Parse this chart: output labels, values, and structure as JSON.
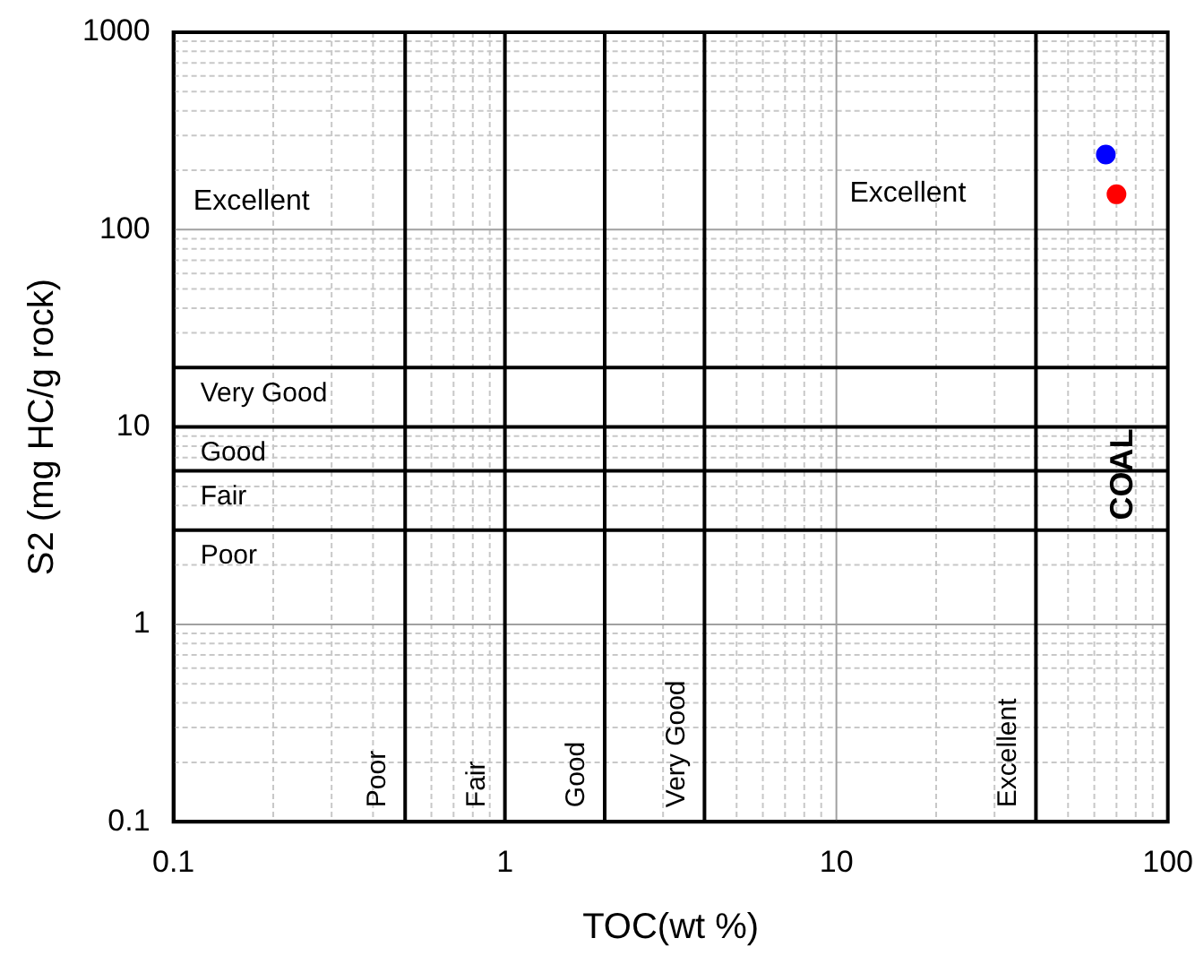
{
  "chart_data": {
    "type": "scatter",
    "xlabel": "TOC(wt %)",
    "ylabel": "S2 (mg HC/g rock)",
    "series": [
      {
        "color": "#0000ff",
        "x": [
          65
        ],
        "values": [
          240
        ]
      },
      {
        "color": "#ff0000",
        "x": [
          70
        ],
        "values": [
          151
        ]
      }
    ],
    "log": "xy",
    "xlim": [
      0.1,
      100
    ],
    "ylim": [
      0.1,
      1000
    ],
    "xticks": [
      0.1,
      1,
      10,
      100
    ],
    "yticks": [
      0.1,
      1,
      10,
      100,
      1000
    ],
    "grid": true,
    "legend": false,
    "marker": "circle",
    "ref_lines": [
      {
        "axis": "x",
        "value": 0.5,
        "label": "Poor",
        "color": "#000000"
      },
      {
        "axis": "x",
        "value": 1,
        "label": "Fair",
        "color": "#000000"
      },
      {
        "axis": "x",
        "value": 2,
        "label": "Good",
        "color": "#000000"
      },
      {
        "axis": "x",
        "value": 4,
        "label": "Very Good",
        "color": "#000000"
      },
      {
        "axis": "x",
        "value": 40,
        "label": "Excellent",
        "color": "#000000"
      },
      {
        "axis": "y",
        "value": 3,
        "label": "Poor",
        "color": "#000000"
      },
      {
        "axis": "y",
        "value": 6,
        "label": "Fair",
        "color": "#000000"
      },
      {
        "axis": "y",
        "value": 10,
        "label": "Good",
        "color": "#000000"
      },
      {
        "axis": "y",
        "value": 20,
        "label": "Very Good",
        "color": "#000000"
      }
    ],
    "annotations": [
      "Excellent",
      "Excellent",
      "COAL"
    ]
  }
}
